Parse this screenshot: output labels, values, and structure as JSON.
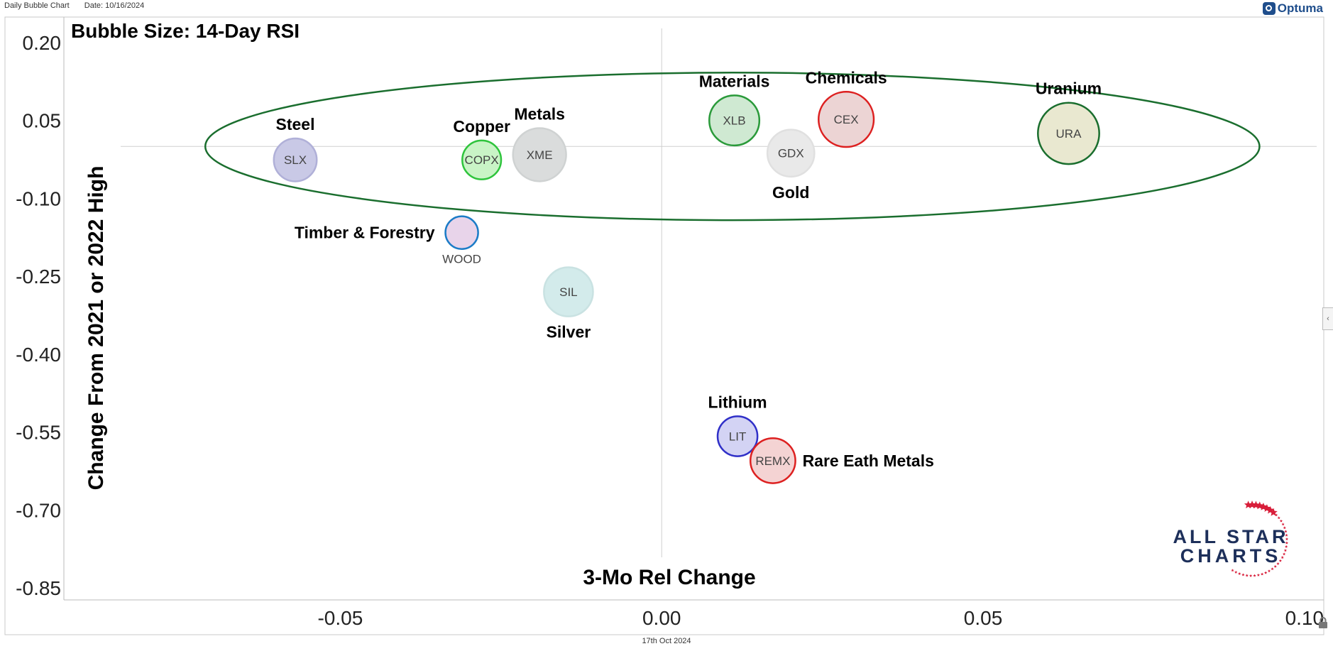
{
  "header": {
    "chart_name": "Daily Bubble Chart",
    "date_text": "Date: 10/16/2024",
    "brand": "Optuma"
  },
  "footer": {
    "date_label": "17th Oct 2024"
  },
  "watermark": {
    "line1": "ALL STAR",
    "line2": "CHARTS"
  },
  "chart_data": {
    "type": "scatter",
    "title": "Bubble Size: 14-Day RSI",
    "xlabel": "3-Mo Rel Change",
    "ylabel": "Change From 2021 or 2022 High",
    "xlim": [
      -0.093,
      0.103
    ],
    "ylim": [
      -0.873,
      0.249
    ],
    "x_ticks": [
      -0.05,
      0.0,
      0.05,
      0.1
    ],
    "x_tick_labels": [
      "-0.05",
      "0.00",
      "0.05",
      "0.10"
    ],
    "y_ticks": [
      0.2,
      0.05,
      -0.1,
      -0.25,
      -0.4,
      -0.55,
      -0.7,
      -0.85
    ],
    "y_tick_labels": [
      "0.20",
      "0.05",
      "-0.10",
      "-0.25",
      "-0.40",
      "-0.55",
      "-0.70",
      "-0.85"
    ],
    "crosshair": {
      "x": 0.0,
      "y": 0.0
    },
    "highlight_ellipse": {
      "cx": 0.011,
      "cy": 0.0,
      "rx": 0.082,
      "ry": 0.142,
      "color": "#1a6e2e"
    },
    "points": [
      {
        "ticker": "SLX",
        "name": "Steel",
        "x": -0.057,
        "y": -0.026,
        "rsi": 42,
        "fill": "#c9c9e6",
        "stroke": "#b0b0d8",
        "name_pos": "above"
      },
      {
        "ticker": "COPX",
        "name": "Copper",
        "x": -0.028,
        "y": -0.026,
        "rsi": 38,
        "fill": "#c9f4c6",
        "stroke": "#2ec43c",
        "name_pos": "above"
      },
      {
        "ticker": "XME",
        "name": "Metals",
        "x": -0.019,
        "y": -0.016,
        "rsi": 52,
        "fill": "#dadcdc",
        "stroke": "#cfd2d2",
        "name_pos": "above"
      },
      {
        "ticker": "XLB",
        "name": "Materials",
        "x": 0.0113,
        "y": 0.05,
        "rsi": 49,
        "fill": "#cfe9d2",
        "stroke": "#2a9a3a",
        "name_pos": "above"
      },
      {
        "ticker": "GDX",
        "name": "Gold",
        "x": 0.0201,
        "y": -0.013,
        "rsi": 46,
        "fill": "#e9e9e9",
        "stroke": "#e0e0e0",
        "name_pos": "below"
      },
      {
        "ticker": "CEX",
        "name": "Chemicals",
        "x": 0.0287,
        "y": 0.052,
        "rsi": 54,
        "fill": "#ecd4d4",
        "stroke": "#dd2020",
        "name_pos": "above"
      },
      {
        "ticker": "URA",
        "name": "Uranium",
        "x": 0.0633,
        "y": 0.025,
        "rsi": 60,
        "fill": "#e9e8d0",
        "stroke": "#1a6e2e",
        "name_pos": "above"
      },
      {
        "ticker": "WOOD",
        "name": "Timber & Forestry",
        "x": -0.0311,
        "y": -0.166,
        "rsi": 32,
        "fill": "#e8d4ea",
        "stroke": "#1c7cc7",
        "name_pos": "left",
        "ticker_pos": "below"
      },
      {
        "ticker": "SIL",
        "name": "Silver",
        "x": -0.0145,
        "y": -0.28,
        "rsi": 48,
        "fill": "#d3ebeb",
        "stroke": "#c9e2e2",
        "name_pos": "below"
      },
      {
        "ticker": "LIT",
        "name": "Lithium",
        "x": 0.0118,
        "y": -0.558,
        "rsi": 39,
        "fill": "#d3d3f4",
        "stroke": "#3030c8",
        "name_pos": "above"
      },
      {
        "ticker": "REMX",
        "name": "Rare Eath Metals",
        "x": 0.0173,
        "y": -0.605,
        "rsi": 44,
        "fill": "#f4d3d3",
        "stroke": "#dd2020",
        "name_pos": "right"
      }
    ]
  }
}
